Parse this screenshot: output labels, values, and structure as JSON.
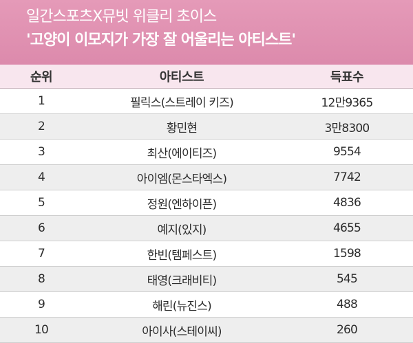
{
  "header": {
    "subtitle": "일간스포츠X뮤빗 위클리 초이스",
    "title": "'고양이 이모지가 가장 잘 어울리는 아티스트'"
  },
  "table": {
    "columns": [
      "순위",
      "아티스트",
      "득표수"
    ],
    "rows": [
      {
        "rank": "1",
        "artist": "필릭스(스트레이 키즈)",
        "votes": "12만9365"
      },
      {
        "rank": "2",
        "artist": "황민현",
        "votes": "3만8300"
      },
      {
        "rank": "3",
        "artist": "최산(에이티즈)",
        "votes": "9554"
      },
      {
        "rank": "4",
        "artist": "아이엠(몬스타엑스)",
        "votes": "7742"
      },
      {
        "rank": "5",
        "artist": "정원(엔하이픈)",
        "votes": "4836"
      },
      {
        "rank": "6",
        "artist": "예지(있지)",
        "votes": "4655"
      },
      {
        "rank": "7",
        "artist": "한빈(템페스트)",
        "votes": "1598"
      },
      {
        "rank": "8",
        "artist": "태영(크래비티)",
        "votes": "545"
      },
      {
        "rank": "9",
        "artist": "해린(뉴진스)",
        "votes": "488"
      },
      {
        "rank": "10",
        "artist": "아이사(스테이씨)",
        "votes": "260"
      }
    ]
  },
  "colors": {
    "header_pink": "#dc8aac",
    "header_row": "#f8e6ee",
    "stripe": "#eeeeee"
  }
}
